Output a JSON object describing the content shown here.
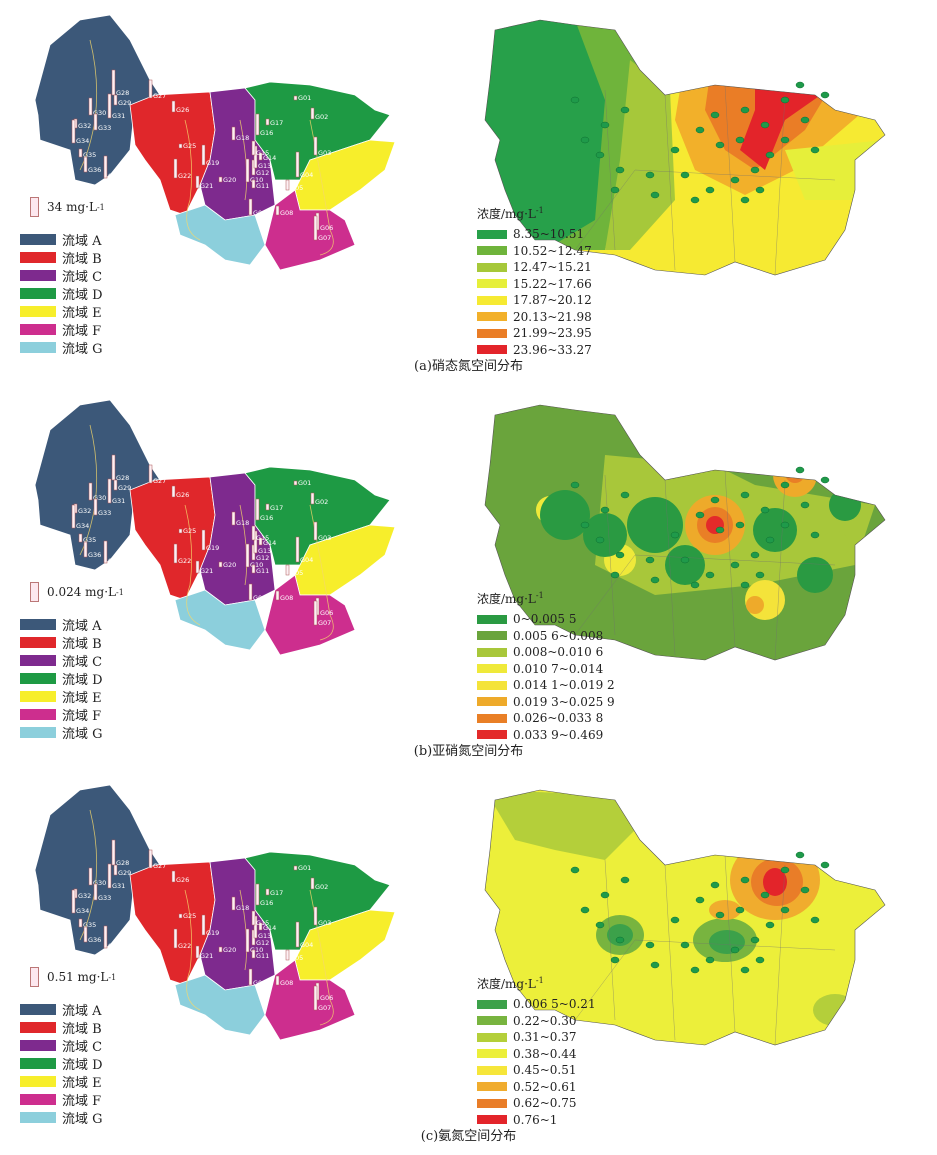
{
  "colors": {
    "basins": {
      "A": "#3c5879",
      "B": "#e0272b",
      "C": "#7e2a8e",
      "D": "#1e9a44",
      "E": "#f7ee2b",
      "F": "#cd2e8e",
      "G": "#8ccfdc"
    },
    "nitrate_ramp": [
      "#27a04a",
      "#6fb43b",
      "#a6c83a",
      "#e6ef3a",
      "#f6ea32",
      "#f2b02a",
      "#ea7d26",
      "#e3242a"
    ],
    "nitrite_ramp": [
      "#2a9a42",
      "#6aa43c",
      "#a8c73a",
      "#efe93a",
      "#f4e33a",
      "#eeaa2a",
      "#e97f26",
      "#e32a2a"
    ],
    "ammonia_ramp": [
      "#3ca14a",
      "#78b43f",
      "#b4cf3a",
      "#ecef3a",
      "#f6e63a",
      "#f0ac2e",
      "#e97d28",
      "#e3242a"
    ]
  },
  "basin_legend": [
    {
      "key": "A",
      "label": "流域 A"
    },
    {
      "key": "B",
      "label": "流域 B"
    },
    {
      "key": "C",
      "label": "流域 C"
    },
    {
      "key": "D",
      "label": "流域 D"
    },
    {
      "key": "E",
      "label": "流域 E"
    },
    {
      "key": "F",
      "label": "流域 F"
    },
    {
      "key": "G",
      "label": "流域 G"
    }
  ],
  "panels": [
    {
      "caption": "(a)硝态氮空间分布",
      "scale_value": "34 mg·L",
      "scale_exp": "-1",
      "legend_title": "浓度/mg·L",
      "legend_title_exp": "-1",
      "ramp": "nitrate_ramp",
      "legend": [
        "8.35~10.51",
        "10.52~12.47",
        "12.47~15.21",
        "15.22~17.66",
        "17.87~20.12",
        "20.13~21.98",
        "21.99~23.95",
        "23.96~33.27"
      ]
    },
    {
      "caption": "(b)亚硝氮空间分布",
      "scale_value": "0.024 mg·L",
      "scale_exp": "-1",
      "legend_title": "浓度/mg·L",
      "legend_title_exp": "-1",
      "ramp": "nitrite_ramp",
      "legend": [
        "0~0.005 5",
        "0.005 6~0.008",
        "0.008~0.010 6",
        "0.010 7~0.014",
        "0.014 1~0.019 2",
        "0.019 3~0.025 9",
        "0.026~0.033 8",
        "0.033 9~0.469"
      ]
    },
    {
      "caption": "(c)氨氮空间分布",
      "scale_value": "0.51 mg·L",
      "scale_exp": "-1",
      "legend_title": "浓度/mg·L",
      "legend_title_exp": "-1",
      "ramp": "ammonia_ramp",
      "legend": [
        "0.006 5~0.21",
        "0.22~0.30",
        "0.31~0.37",
        "0.38~0.44",
        "0.45~0.51",
        "0.52~0.61",
        "0.62~0.75",
        "0.76~1"
      ]
    }
  ],
  "site_labels": [
    "G01",
    "G02",
    "G03",
    "G04",
    "G05",
    "G06",
    "G07",
    "G08",
    "G09",
    "G10",
    "G11",
    "G12",
    "G13",
    "G14",
    "G15",
    "G16",
    "G17",
    "G18",
    "G19",
    "G20",
    "G21",
    "G22",
    "G25",
    "G26",
    "G27",
    "G28",
    "G29",
    "G30",
    "G31",
    "G32",
    "G33",
    "G34",
    "G35",
    "G36",
    "G37"
  ]
}
